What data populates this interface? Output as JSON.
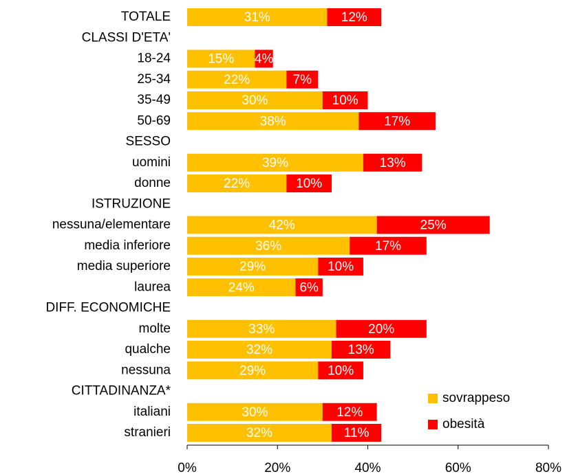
{
  "chart_data": {
    "type": "stacked-bar-horizontal",
    "categories": [
      "TOTALE",
      "CLASSI D'ETA'",
      "18-24",
      "25-34",
      "35-49",
      "50-69",
      "SESSO",
      "uomini",
      "donne",
      "ISTRUZIONE",
      "nessuna/elementare",
      "media inferiore",
      "media superiore",
      "laurea",
      "DIFF. ECONOMICHE",
      "molte",
      "qualche",
      "nessuna",
      "CITTADINANZA*",
      "italiani",
      "stranieri"
    ],
    "series": [
      {
        "name": "sovrappeso",
        "color": "#FFC000",
        "values": [
          31,
          null,
          15,
          22,
          30,
          38,
          null,
          39,
          22,
          null,
          42,
          36,
          29,
          24,
          null,
          33,
          32,
          29,
          null,
          30,
          32
        ],
        "value_labels": [
          "31%",
          null,
          "15%",
          "22%",
          "30%",
          "38%",
          null,
          "39%",
          "22%",
          null,
          "42%",
          "36%",
          "29%",
          "24%",
          null,
          "33%",
          "32%",
          "29%",
          null,
          "30%",
          "32%"
        ]
      },
      {
        "name": "obesità",
        "color": "#FF0000",
        "values": [
          12,
          null,
          4,
          7,
          10,
          17,
          null,
          13,
          10,
          null,
          25,
          17,
          10,
          6,
          null,
          20,
          13,
          10,
          null,
          12,
          11
        ],
        "value_labels": [
          "12%",
          null,
          "4%",
          "7%",
          "10%",
          "17%",
          null,
          "13%",
          "10%",
          null,
          "25%",
          "17%",
          "10%",
          "6%",
          null,
          "20%",
          "13%",
          "10%",
          null,
          "12%",
          "11%"
        ]
      }
    ],
    "xlim": [
      0,
      80
    ],
    "xticks": [
      {
        "value": 0,
        "label": "0%"
      },
      {
        "value": 20,
        "label": "20%"
      },
      {
        "value": 40,
        "label": "40%"
      },
      {
        "value": 60,
        "label": "60%"
      },
      {
        "value": 80,
        "label": "80%"
      }
    ],
    "legend": "lower-right"
  }
}
